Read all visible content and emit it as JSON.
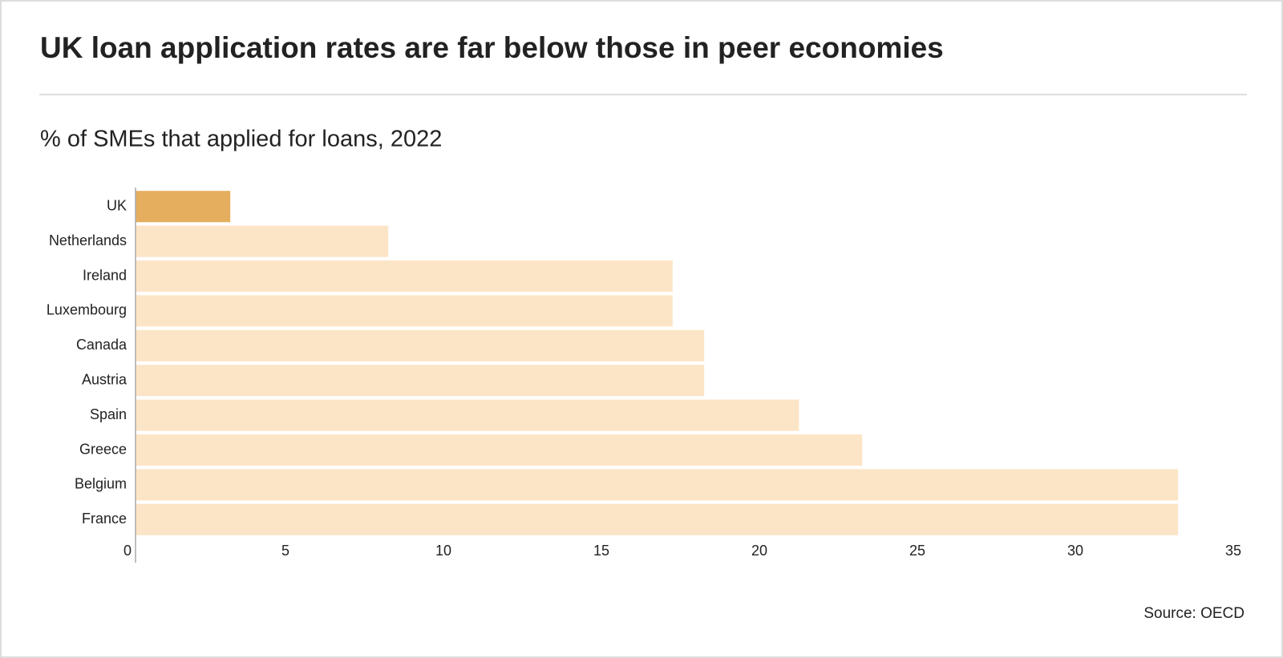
{
  "chart_data": {
    "type": "bar",
    "orientation": "horizontal",
    "title": "UK loan application rates are far below those in peer economies",
    "subtitle": "% of SMEs that applied for loans, 2022",
    "source": "Source: OECD",
    "categories": [
      "UK",
      "Netherlands",
      "Ireland",
      "Luxembourg",
      "Canada",
      "Austria",
      "Spain",
      "Greece",
      "Belgium",
      "France"
    ],
    "values": [
      3,
      8,
      17,
      17,
      18,
      18,
      21,
      23,
      33,
      33
    ],
    "colors": [
      "#e5ae5e",
      "#fce5c7",
      "#fce5c7",
      "#fce5c7",
      "#fce5c7",
      "#fce5c7",
      "#fce5c7",
      "#fce5c7",
      "#fce5c7",
      "#fce5c7"
    ],
    "xlim": [
      0,
      35
    ],
    "xticks": [
      0,
      5,
      10,
      15,
      20,
      25,
      30,
      35
    ],
    "grid": false
  }
}
